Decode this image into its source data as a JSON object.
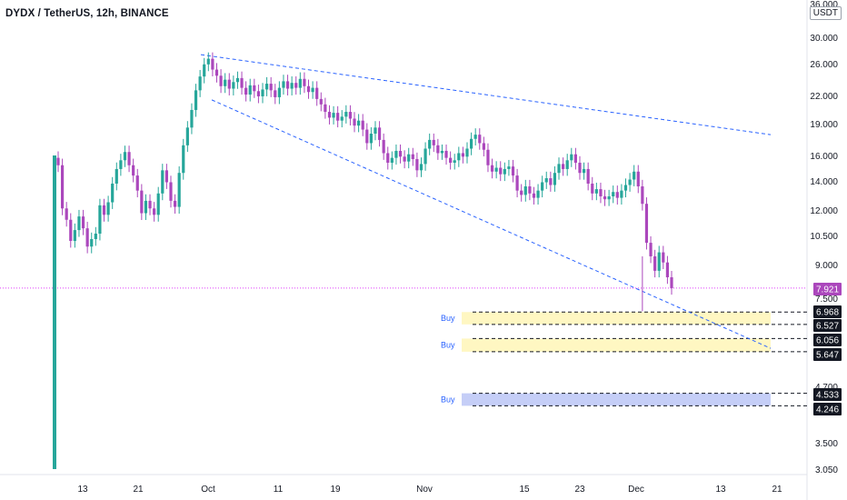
{
  "header": {
    "title": "DYDX / TetherUS, 12h, BINANCE",
    "currency": "USDT"
  },
  "colors": {
    "up": "#26a69a",
    "down": "#ab47bc",
    "trendline": "#2962ff",
    "buy_zone_yellow": "#fff7c2",
    "buy_zone_blue": "#c5cef7",
    "price_line": "#e040fb"
  },
  "chart_data": {
    "type": "candlestick",
    "title": "DYDX / TetherUS, 12h, BINANCE",
    "y_scale": "log",
    "ylim": [
      3.0,
      36.0
    ],
    "y_ticks": [
      "36.000",
      "30.000",
      "26.000",
      "22.000",
      "19.000",
      "16.000",
      "14.000",
      "12.000",
      "10.500",
      "9.000",
      "7.500",
      "4.700",
      "3.500",
      "3.050"
    ],
    "x_ticks": [
      "13",
      "21",
      "Oct",
      "11",
      "19",
      "Nov",
      "15",
      "23",
      "Dec",
      "13",
      "21"
    ],
    "last_price": "7.921",
    "price_badges": [
      "6.968",
      "6.527",
      "6.056",
      "5.647",
      "4.533",
      "4.246"
    ],
    "buy_zones": [
      {
        "label": "Buy",
        "from": 6.527,
        "to": 6.968
      },
      {
        "label": "Buy",
        "from": 5.647,
        "to": 6.056
      },
      {
        "label": "Buy",
        "from": 4.246,
        "to": 4.533
      }
    ],
    "trendlines": [
      {
        "name": "upper",
        "from": [
          "Sep 29",
          27.3
        ],
        "to": [
          "Dec 24",
          17.9
        ]
      },
      {
        "name": "lower",
        "from": [
          "Sep 30",
          21.5
        ],
        "to": [
          "Dec 24",
          5.75
        ]
      }
    ],
    "listing_candle": {
      "open": 3.05,
      "high": 16.0,
      "low": 3.05,
      "close": 16.0
    },
    "candles_close": [
      15.2,
      12.1,
      11.4,
      10.2,
      10.8,
      11.6,
      10.9,
      9.9,
      10.3,
      10.6,
      12.3,
      11.7,
      12.5,
      13.8,
      14.9,
      15.6,
      16.3,
      15.2,
      14.4,
      13.3,
      11.8,
      12.6,
      12.1,
      11.7,
      13.1,
      14.8,
      13.9,
      12.6,
      12.2,
      14.6,
      16.9,
      18.6,
      20.4,
      22.6,
      24.3,
      25.9,
      26.7,
      25.2,
      24.4,
      23.1,
      23.9,
      22.8,
      23.6,
      24.1,
      22.9,
      22.1,
      23.2,
      22.5,
      21.9,
      22.7,
      23.4,
      22.6,
      21.8,
      22.9,
      23.7,
      22.8,
      23.5,
      22.9,
      24.0,
      23.1,
      22.4,
      22.9,
      21.6,
      21.0,
      20.2,
      19.6,
      20.1,
      19.3,
      19.7,
      20.2,
      19.5,
      18.8,
      19.3,
      18.4,
      17.1,
      18.0,
      18.6,
      17.4,
      16.2,
      15.4,
      15.8,
      16.4,
      15.9,
      15.5,
      16.1,
      15.7,
      14.8,
      15.3,
      16.6,
      17.4,
      16.9,
      16.2,
      16.4,
      15.8,
      15.4,
      15.6,
      16.2,
      15.9,
      16.6,
      17.5,
      17.9,
      17.1,
      16.5,
      15.2,
      14.7,
      15.0,
      14.5,
      14.9,
      15.1,
      14.4,
      13.3,
      13.0,
      13.6,
      13.1,
      12.8,
      13.3,
      13.9,
      14.2,
      13.7,
      14.6,
      15.3,
      14.9,
      15.6,
      16.1,
      15.4,
      14.6,
      14.9,
      13.8,
      13.1,
      13.4,
      12.9,
      12.7,
      12.9,
      13.2,
      12.8,
      13.3,
      13.7,
      14.1,
      14.7,
      13.6,
      12.4,
      10.1,
      9.4,
      8.7,
      9.6,
      9.1,
      8.4,
      7.92
    ],
    "series": [
      {
        "name": "DYDX / TetherUS",
        "values": "candles_close"
      }
    ]
  }
}
